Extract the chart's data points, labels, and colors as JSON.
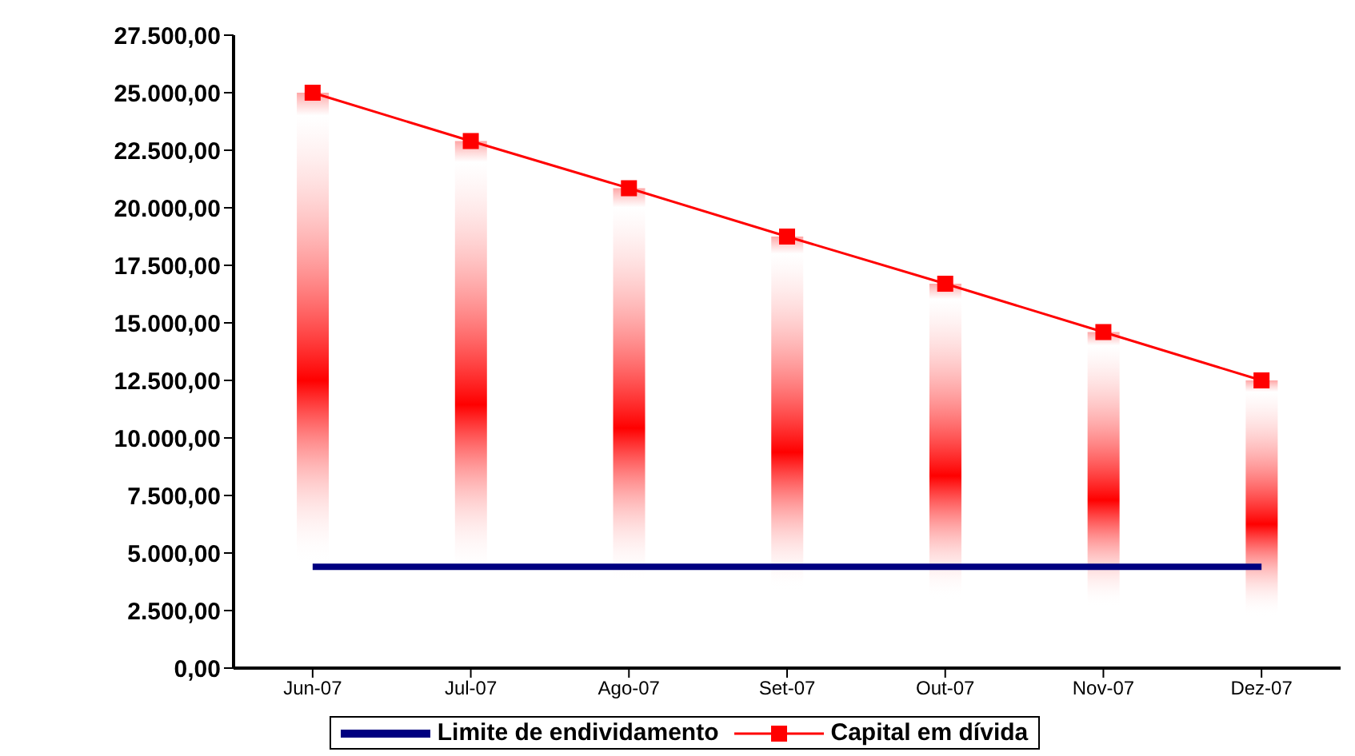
{
  "chart_data": {
    "type": "line",
    "categories": [
      "Jun-07",
      "Jul-07",
      "Ago-07",
      "Set-07",
      "Out-07",
      "Nov-07",
      "Dez-07"
    ],
    "series": [
      {
        "type": "bar",
        "color": "#ff0000",
        "values": [
          25000,
          22900,
          20850,
          18750,
          16700,
          14600,
          12500
        ]
      },
      {
        "name": "Limite de endividamento",
        "color": "#000080",
        "marker": "none",
        "values": [
          4400,
          4400,
          4400,
          4400,
          4400,
          4400,
          4400
        ]
      },
      {
        "name": "Capital em dívida",
        "color": "#ff0000",
        "marker": "square",
        "values": [
          25000,
          22900,
          20850,
          18750,
          16700,
          14600,
          12500
        ]
      }
    ],
    "ylim": [
      0,
      27500
    ],
    "yticks": [
      {
        "value": 0,
        "label": "0,00"
      },
      {
        "value": 2500,
        "label": "2.500,00"
      },
      {
        "value": 5000,
        "label": "5.000,00"
      },
      {
        "value": 7500,
        "label": "7.500,00"
      },
      {
        "value": 10000,
        "label": "10.000,00"
      },
      {
        "value": 12500,
        "label": "12.500,00"
      },
      {
        "value": 15000,
        "label": "15.000,00"
      },
      {
        "value": 17500,
        "label": "17.500,00"
      },
      {
        "value": 20000,
        "label": "20.000,00"
      },
      {
        "value": 22500,
        "label": "22.500,00"
      },
      {
        "value": 25000,
        "label": "25.000,00"
      },
      {
        "value": 27500,
        "label": "27.500,00"
      }
    ],
    "grid": false,
    "legend": "bottom"
  }
}
